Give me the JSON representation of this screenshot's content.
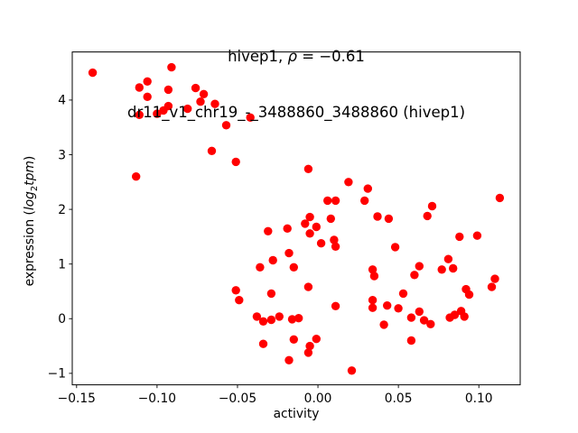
{
  "title_parts": {
    "gene": "hivep1, ",
    "rho": "ρ",
    "eq": " = −0.61"
  },
  "ylabel_parts": {
    "prefix": "expression (",
    "log": "log",
    "sub": "2",
    "tpm": "tpm",
    "suffix": ")"
  },
  "chart_data": {
    "type": "scatter",
    "title": "hivep1, ρ = −0.61",
    "subtitle": "dr11_v1_chr19_-_3488860_3488860 (hivep1)",
    "xlabel": "activity",
    "ylabel": "expression (log2tpm)",
    "legend_position": "none",
    "grid": false,
    "marker": "circle",
    "marker_color": "#ff0000",
    "marker_radius_px": 4.7,
    "frame_color": "#000000",
    "xlim": [
      -0.1527,
      0.1257
    ],
    "ylim": [
      -1.21,
      4.88
    ],
    "x_ticks": [
      -0.15,
      -0.1,
      -0.05,
      0.0,
      0.05,
      0.1
    ],
    "x_tick_labels": [
      "−0.15",
      "−0.10",
      "−0.05",
      "0.00",
      "0.05",
      "0.10"
    ],
    "y_ticks": [
      -1,
      0,
      1,
      2,
      3,
      4
    ],
    "y_tick_labels": [
      "−1",
      "0",
      "1",
      "2",
      "3",
      "4"
    ],
    "points": [
      [
        -0.14,
        4.5
      ],
      [
        -0.091,
        4.6
      ],
      [
        -0.106,
        4.34
      ],
      [
        -0.111,
        4.23
      ],
      [
        -0.093,
        4.19
      ],
      [
        -0.076,
        4.22
      ],
      [
        -0.106,
        4.06
      ],
      [
        -0.071,
        4.11
      ],
      [
        -0.073,
        3.97
      ],
      [
        -0.093,
        3.89
      ],
      [
        -0.081,
        3.84
      ],
      [
        -0.064,
        3.93
      ],
      [
        -0.111,
        3.73
      ],
      [
        -0.1,
        3.75
      ],
      [
        -0.096,
        3.81
      ],
      [
        -0.042,
        3.68
      ],
      [
        -0.057,
        3.54
      ],
      [
        -0.066,
        3.07
      ],
      [
        -0.051,
        2.87
      ],
      [
        -0.113,
        2.6
      ],
      [
        -0.006,
        2.74
      ],
      [
        0.019,
        2.5
      ],
      [
        0.031,
        2.38
      ],
      [
        0.006,
        2.16
      ],
      [
        0.011,
        2.16
      ],
      [
        0.029,
        2.16
      ],
      [
        0.113,
        2.21
      ],
      [
        0.071,
        2.06
      ],
      [
        0.068,
        1.88
      ],
      [
        0.037,
        1.87
      ],
      [
        0.044,
        1.83
      ],
      [
        -0.005,
        1.86
      ],
      [
        0.008,
        1.83
      ],
      [
        -0.019,
        1.65
      ],
      [
        -0.031,
        1.6
      ],
      [
        -0.008,
        1.74
      ],
      [
        -0.001,
        1.68
      ],
      [
        -0.005,
        1.56
      ],
      [
        0.002,
        1.38
      ],
      [
        0.01,
        1.44
      ],
      [
        0.011,
        1.32
      ],
      [
        0.048,
        1.31
      ],
      [
        0.088,
        1.5
      ],
      [
        0.099,
        1.52
      ],
      [
        -0.018,
        1.2
      ],
      [
        -0.028,
        1.07
      ],
      [
        0.081,
        1.09
      ],
      [
        -0.015,
        0.94
      ],
      [
        -0.036,
        0.94
      ],
      [
        0.034,
        0.9
      ],
      [
        0.035,
        0.78
      ],
      [
        0.06,
        0.8
      ],
      [
        0.063,
        0.96
      ],
      [
        0.077,
        0.9
      ],
      [
        0.084,
        0.92
      ],
      [
        0.11,
        0.73
      ],
      [
        0.108,
        0.58
      ],
      [
        0.092,
        0.54
      ],
      [
        0.094,
        0.44
      ],
      [
        -0.051,
        0.52
      ],
      [
        -0.049,
        0.34
      ],
      [
        -0.029,
        0.46
      ],
      [
        -0.006,
        0.58
      ],
      [
        0.053,
        0.46
      ],
      [
        0.034,
        0.34
      ],
      [
        0.034,
        0.2
      ],
      [
        0.043,
        0.24
      ],
      [
        0.05,
        0.19
      ],
      [
        0.011,
        0.23
      ],
      [
        0.063,
        0.13
      ],
      [
        0.089,
        0.14
      ],
      [
        -0.038,
        0.04
      ],
      [
        -0.034,
        -0.05
      ],
      [
        -0.029,
        -0.02
      ],
      [
        -0.024,
        0.04
      ],
      [
        -0.016,
        -0.01
      ],
      [
        -0.012,
        0.01
      ],
      [
        0.058,
        0.02
      ],
      [
        0.082,
        0.02
      ],
      [
        0.085,
        0.07
      ],
      [
        0.091,
        0.04
      ],
      [
        0.041,
        -0.11
      ],
      [
        0.066,
        -0.03
      ],
      [
        0.07,
        -0.1
      ],
      [
        -0.034,
        -0.46
      ],
      [
        -0.015,
        -0.38
      ],
      [
        -0.001,
        -0.37
      ],
      [
        -0.005,
        -0.5
      ],
      [
        -0.006,
        -0.62
      ],
      [
        -0.018,
        -0.76
      ],
      [
        0.058,
        -0.4
      ],
      [
        0.021,
        -0.95
      ]
    ]
  }
}
